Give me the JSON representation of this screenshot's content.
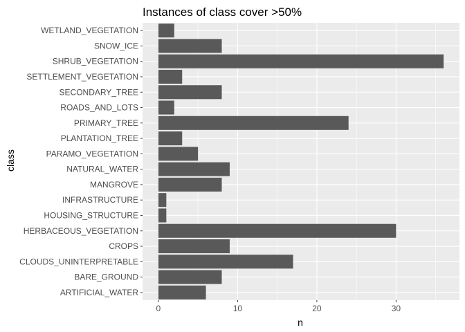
{
  "chart_data": {
    "type": "bar",
    "orientation": "horizontal",
    "title": "Instances of class cover >50%",
    "xlabel": "n",
    "ylabel": "class",
    "categories": [
      "WETLAND_VEGETATION",
      "SNOW_ICE",
      "SHRUB_VEGETATION",
      "SETTLEMENT_VEGETATION",
      "SECONDARY_TREE",
      "ROADS_AND_LOTS",
      "PRIMARY_TREE",
      "PLANTATION_TREE",
      "PARAMO_VEGETATION",
      "NATURAL_WATER",
      "MANGROVE",
      "INFRASTRUCTURE",
      "HOUSING_STRUCTURE",
      "HERBACEOUS_VEGETATION",
      "CROPS",
      "CLOUDS_UNINTERPRETABLE",
      "BARE_GROUND",
      "ARTIFICIAL_WATER"
    ],
    "values": [
      2,
      8,
      36,
      3,
      8,
      2,
      24,
      3,
      5,
      9,
      8,
      1,
      1,
      30,
      9,
      17,
      8,
      6
    ],
    "xlim": [
      -2,
      38
    ],
    "xticks": [
      0,
      10,
      20,
      30
    ],
    "grid": true,
    "colors": {
      "bar": "#595959",
      "panel": "#ebebeb",
      "grid_major": "#ffffff"
    }
  }
}
